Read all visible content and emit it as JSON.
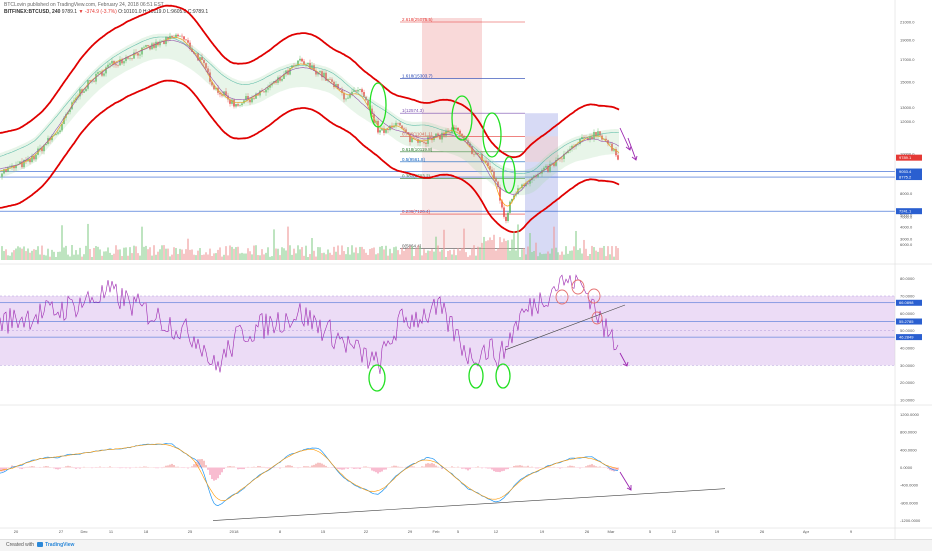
{
  "header": {
    "line1": "BTCLovin published on TradingView.com, February 24, 2018 06:51 EST",
    "symbol": "BITFINEX:BTCUSD, 240",
    "price": "9789.1",
    "change": "▼ -374.9 (-3.7%)",
    "ohlc": "O:10101.0 H:10119.0 L:9605.0 C:9789.1"
  },
  "footer": {
    "created_with": "Created with",
    "brand": "TradingView"
  },
  "colors": {
    "up": "#4caf50",
    "down": "#e53935",
    "band": "#e00000",
    "rsi": "#9c27b0",
    "rsi_zone": "#ead8f5",
    "macd": "#2196f3",
    "signal": "#ff9800",
    "annot_green": "#22e022",
    "arrow": "#9c27b0"
  },
  "chart_data": [
    {
      "type": "candlestick",
      "symbol": "BITFINEX:BTCUSD",
      "interval": "240",
      "price_scale_labels": [
        "21000.0",
        "19000.0",
        "17000.0",
        "15000.0",
        "13000.0",
        "12000.0",
        "10000.0",
        "9000.0",
        "8000.0",
        "7000.0",
        "6000.0",
        "5000.0",
        "4000.0",
        "3000.0"
      ],
      "current_price_label": "9789.1",
      "price_level_labels": [
        "9053.4",
        "8775.2",
        "7241.1"
      ],
      "x_tick_labels": [
        "20",
        "27",
        "Dec",
        "11",
        "18",
        "25",
        "2018",
        "8",
        "15",
        "22",
        "29",
        "Feb",
        "5",
        "12",
        "19",
        "26",
        "Mar",
        "5",
        "12",
        "19",
        "26",
        "Apr",
        "9"
      ],
      "fib_levels": [
        {
          "label": "2.618(25075.5)",
          "price": 25075.5
        },
        {
          "label": "1.618(15303.7)",
          "price": 15303.7
        },
        {
          "label": "1(12574.3)",
          "price": 12574.3
        },
        {
          "label": "0.786(11041.1)",
          "price": 11041.1
        },
        {
          "label": "0.618(10119.8)",
          "price": 10119.8
        },
        {
          "label": "0.5(9561.8)",
          "price": 9561.8
        },
        {
          "label": "0.382(8703.2)",
          "price": 8703.2
        },
        {
          "label": "0.236(7126.4)",
          "price": 7126.4
        },
        {
          "label": "0(5864.4)",
          "price": 5864.4
        }
      ],
      "overlays": [
        "Bollinger Bands (red)",
        "Ichimoku Cloud",
        "Moving Averages"
      ],
      "ylim": [
        5500,
        21500
      ]
    },
    {
      "type": "line",
      "name": "RSI",
      "scale_labels": [
        "80.0000",
        "70.0000",
        "60.0000",
        "50.0000",
        "40.0000",
        "30.0000",
        "20.0000",
        "10.0000"
      ],
      "value_labels": [
        "66.0898",
        "55.2785",
        "46.2849"
      ],
      "ylim": [
        10,
        85
      ]
    },
    {
      "type": "line",
      "name": "MACD",
      "scale_labels": [
        "1200.0000",
        "800.0000",
        "400.0000",
        "0.0000",
        "-400.0000",
        "-800.0000",
        "-1200.0000"
      ],
      "ylim": [
        -1300,
        1300
      ]
    }
  ]
}
